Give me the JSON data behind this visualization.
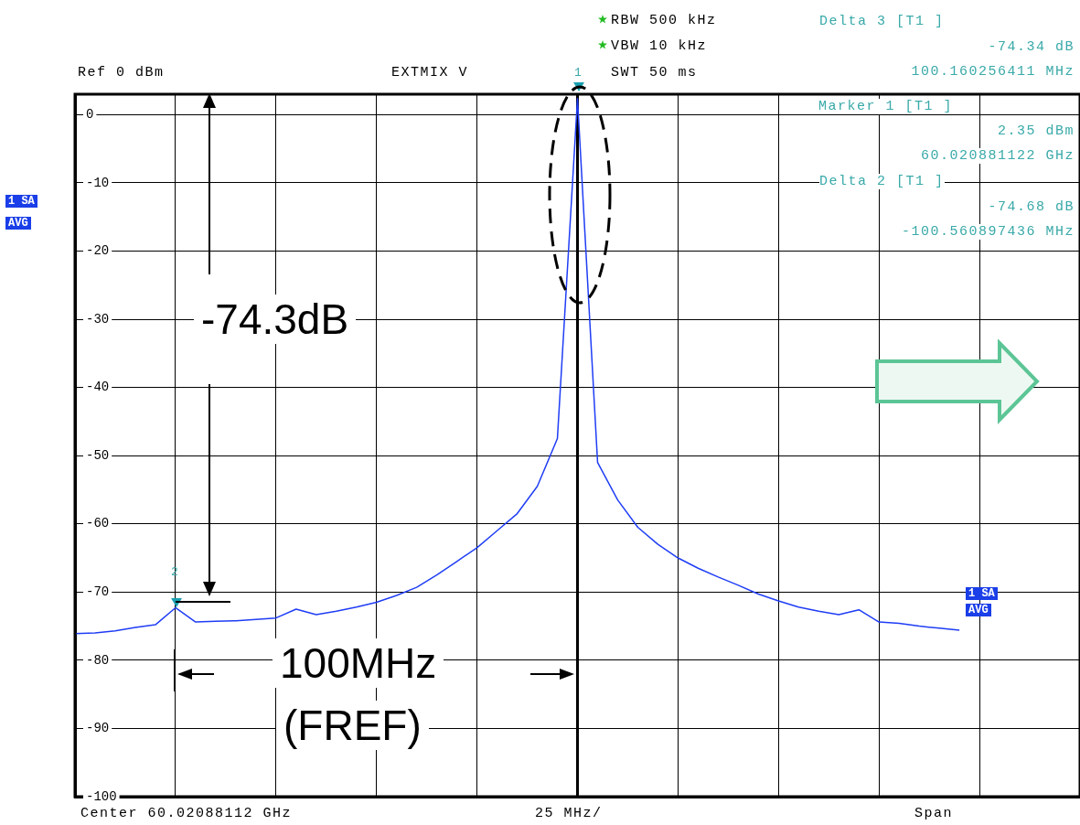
{
  "chart_data": {
    "type": "line",
    "categories": [
      null,
      null,
      null,
      null,
      null,
      null,
      null,
      null,
      null,
      null,
      null,
      null,
      null,
      null,
      null,
      null,
      null,
      null,
      null,
      null,
      null,
      null,
      null,
      null,
      null,
      null,
      null,
      null,
      null,
      null,
      null,
      null,
      null,
      null,
      null,
      null,
      null,
      null,
      null,
      null,
      null,
      null,
      null,
      null,
      null,
      null,
      null,
      null,
      null,
      null,
      null
    ],
    "series": [
      {
        "color": "#1f3df5",
        "values": [
          -76.1,
          -76.0,
          -75.7,
          -75.2,
          -74.8,
          -72.3,
          -74.4,
          -74.3,
          -74.2,
          -74.0,
          -73.8,
          -72.5,
          -73.3,
          -72.8,
          -72.2,
          -71.5,
          -70.5,
          -69.3,
          -67.5,
          -65.5,
          -63.5,
          -61,
          -58.5,
          -54.5,
          -47.5,
          2.35,
          -51,
          -56.5,
          -60.5,
          -63,
          -65,
          -66.5,
          -67.8,
          -69,
          -70.3,
          -71.3,
          -72.2,
          -72.8,
          -73.3,
          -72.6,
          -74.4,
          -74.6,
          -75,
          -75.3,
          -75.6,
          null,
          null,
          null,
          null,
          null,
          null
        ]
      }
    ],
    "ylim": [
      -100,
      3
    ],
    "yticks": [
      0,
      -10,
      -20,
      -30,
      -40,
      -50,
      -60,
      -70,
      -80,
      -90,
      -100
    ],
    "tick_labels": "y",
    "grid": true,
    "legend": false,
    "marker": "none",
    "line_style": "solid",
    "annotations": [
      "RBW  500 kHz",
      "VBW  10 kHz",
      "SWT  50 ms",
      "Ref   0 dBm",
      "EXTMIX V",
      "Delta 3 [T1 ]",
      "-74.34 dB",
      "100.160256411 MHz",
      "Marker 1 [T1 ]",
      "2.35 dBm",
      "60.020881122 GHz",
      "Delta 2 [T1 ]",
      "-74.68 dB",
      "-100.560897436 MHz",
      "1 SA",
      "AVG",
      "-74.3dB",
      "100MHz",
      "(FREF)",
      "Center  60.02088112 GHz",
      "25 MHz/",
      "Span",
      "1 SA",
      "AVG",
      "1",
      "2"
    ]
  }
}
